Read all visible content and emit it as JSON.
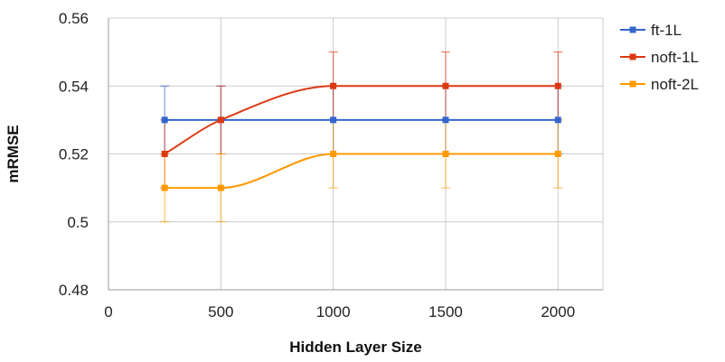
{
  "chart_data": {
    "type": "line",
    "title": "",
    "xlabel": "Hidden Layer Size",
    "ylabel": "mRMSE",
    "xlim": [
      0,
      2200
    ],
    "ylim": [
      0.48,
      0.56
    ],
    "xticks": [
      0,
      500,
      1000,
      1500,
      2000
    ],
    "xtick_labels": [
      "0",
      "500",
      "1000",
      "1500",
      "2000"
    ],
    "yticks": [
      0.48,
      0.5,
      0.52,
      0.54,
      0.56
    ],
    "ytick_labels": [
      "0.48",
      "0.5",
      "0.52",
      "0.54",
      "0.56"
    ],
    "grid": true,
    "legend_position": "right",
    "series": [
      {
        "name": "ft-1L",
        "color": "#3366cc",
        "x": [
          250,
          500,
          1000,
          1500,
          2000
        ],
        "y": [
          0.53,
          0.53,
          0.53,
          0.53,
          0.53
        ],
        "err": [
          0.01,
          0.01,
          0.01,
          0.01,
          0.01
        ]
      },
      {
        "name": "noft-1L",
        "color": "#dc3912",
        "x": [
          250,
          500,
          1000,
          1500,
          2000
        ],
        "y": [
          0.52,
          0.53,
          0.54,
          0.54,
          0.54
        ],
        "err": [
          0.01,
          0.01,
          0.01,
          0.01,
          0.01
        ]
      },
      {
        "name": "noft-2L",
        "color": "#ff9900",
        "x": [
          250,
          500,
          1000,
          1500,
          2000
        ],
        "y": [
          0.51,
          0.51,
          0.52,
          0.52,
          0.52
        ],
        "err": [
          0.01,
          0.01,
          0.01,
          0.01,
          0.01
        ]
      }
    ]
  }
}
